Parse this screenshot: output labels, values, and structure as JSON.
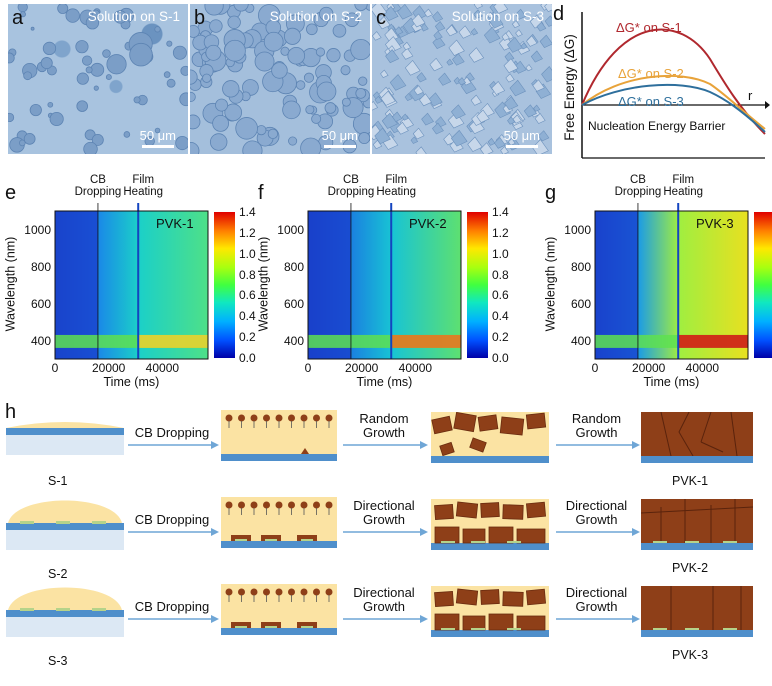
{
  "panels": {
    "a": {
      "letter": "a",
      "title": "Solution on S-1",
      "scale": "50 μm"
    },
    "b": {
      "letter": "b",
      "title": "Solution on S-2",
      "scale": "50 μm"
    },
    "c": {
      "letter": "c",
      "title": "Solution on S-3",
      "scale": "50 μm"
    },
    "d": {
      "letter": "d",
      "ylabel": "Free Energy (ΔG)",
      "xlabel": "r",
      "curve1": "ΔG* on S-1",
      "curve2": "ΔG* on S-2",
      "curve3": "ΔG* on S-3",
      "caption": "Nucleation Energy Barrier",
      "colors": {
        "s1": "#b0282e",
        "s2": "#e8a33a",
        "s3": "#2e6f9c"
      }
    },
    "e": {
      "letter": "e",
      "name": "PVK-1"
    },
    "f": {
      "letter": "f",
      "name": "PVK-2"
    },
    "g": {
      "letter": "g",
      "name": "PVK-3"
    },
    "h": {
      "letter": "h"
    }
  },
  "heatmaps": {
    "annot_cb": "CB\nDropping",
    "annot_film": "Film\nHeating",
    "ylabel": "Wavelength (nm)",
    "xlabel": "Time (ms)",
    "yticks": [
      "1000",
      "800",
      "600",
      "400"
    ],
    "xticks": [
      "0",
      "20000",
      "40000"
    ],
    "cticks": [
      "1.4",
      "1.2",
      "1.0",
      "0.8",
      "0.6",
      "0.4",
      "0.2",
      "0.0"
    ]
  },
  "chart_data": [
    {
      "type": "heatmap",
      "title": "PVK-1",
      "xlabel": "Time (ms)",
      "ylabel": "Wavelength (nm)",
      "xlim": [
        0,
        57000
      ],
      "ylim": [
        300,
        1100
      ],
      "clim": [
        0.0,
        1.4
      ],
      "events": {
        "CB Dropping": 16000,
        "Film Heating": 31000
      }
    },
    {
      "type": "heatmap",
      "title": "PVK-2",
      "xlabel": "Time (ms)",
      "ylabel": "Wavelength (nm)",
      "xlim": [
        0,
        57000
      ],
      "ylim": [
        300,
        1100
      ],
      "clim": [
        0.0,
        1.4
      ],
      "events": {
        "CB Dropping": 16000,
        "Film Heating": 31000
      }
    },
    {
      "type": "heatmap",
      "title": "PVK-3",
      "xlabel": "Time (ms)",
      "ylabel": "Wavelength (nm)",
      "xlim": [
        0,
        57000
      ],
      "ylim": [
        300,
        1100
      ],
      "clim": [
        0.0,
        1.4
      ],
      "events": {
        "CB Dropping": 16000,
        "Film Heating": 31000
      }
    }
  ],
  "schematic": {
    "rows": [
      {
        "substrate": "S-1",
        "step1": "CB Dropping",
        "step2": "Random\nGrowth",
        "step3": "Random\nGrowth",
        "product": "PVK-1"
      },
      {
        "substrate": "S-2",
        "step1": "CB Dropping",
        "step2": "Directional\nGrowth",
        "step3": "Directional\nGrowth",
        "product": "PVK-2"
      },
      {
        "substrate": "S-3",
        "step1": "CB Dropping",
        "step2": "Directional\nGrowth",
        "step3": "Directional\nGrowth",
        "product": "PVK-3"
      }
    ],
    "colors": {
      "film": "#fbe3a3",
      "substrate": "#4f8fcb",
      "glass": "#dce8f4",
      "crystal": "#8e3f18",
      "seed": "#b5d38a",
      "arrow": "#6fa6d6"
    }
  }
}
